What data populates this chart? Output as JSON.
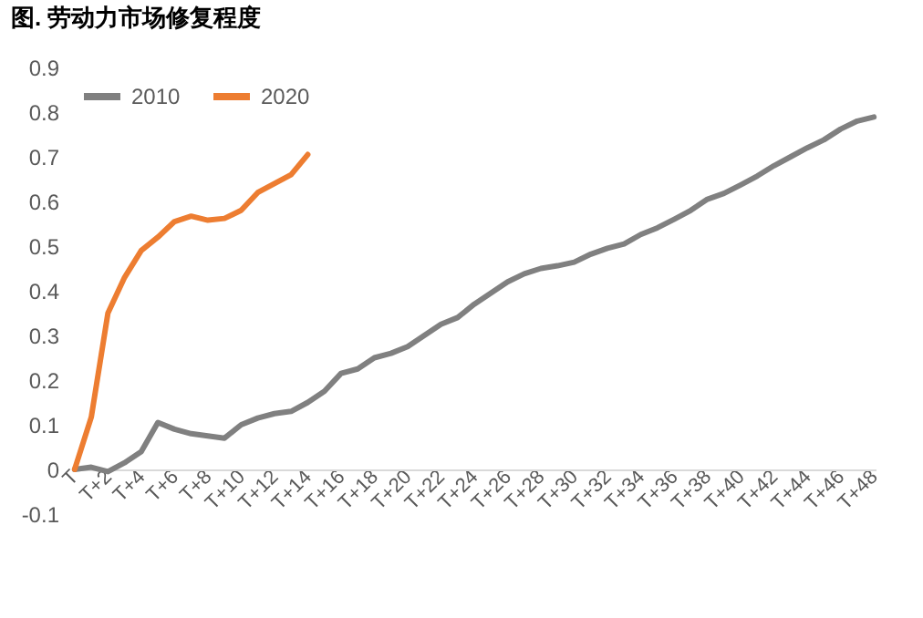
{
  "chart_data": {
    "type": "line",
    "title": "图. 劳动力市场修复程度",
    "categories": [
      "T",
      null,
      "T+2",
      null,
      "T+4",
      null,
      "T+6",
      null,
      "T+8",
      null,
      "T+10",
      null,
      "T+12",
      null,
      "T+14",
      null,
      "T+16",
      null,
      "T+18",
      null,
      "T+20",
      null,
      "T+22",
      null,
      "T+24",
      null,
      "T+26",
      null,
      "T+28",
      null,
      "T+30",
      null,
      "T+32",
      null,
      "T+34",
      null,
      "T+36",
      null,
      "T+38",
      null,
      "T+40",
      null,
      "T+42",
      null,
      "T+44",
      null,
      "T+46",
      null,
      "T+48"
    ],
    "series": [
      {
        "name": "2010",
        "color": "#808080",
        "values": [
          0,
          0.005,
          -0.005,
          0.015,
          0.04,
          0.105,
          0.09,
          0.08,
          0.075,
          0.07,
          0.1,
          0.115,
          0.125,
          0.13,
          0.15,
          0.175,
          0.215,
          0.225,
          0.25,
          0.26,
          0.275,
          0.3,
          0.325,
          0.34,
          0.37,
          0.395,
          0.42,
          0.438,
          0.45,
          0.456,
          0.464,
          0.482,
          0.495,
          0.505,
          0.526,
          0.541,
          0.56,
          0.58,
          0.605,
          0.618,
          0.637,
          0.657,
          0.68,
          0.7,
          0.72,
          0.738,
          0.762,
          0.78,
          0.789
        ]
      },
      {
        "name": "2020",
        "color": "#ed7d31",
        "values": [
          0,
          0.117,
          0.35,
          0.43,
          0.49,
          0.52,
          0.555,
          0.567,
          0.558,
          0.562,
          0.58,
          0.62,
          0.64,
          0.66,
          0.705,
          null,
          null,
          null,
          null,
          null,
          null,
          null,
          null,
          null,
          null,
          null,
          null,
          null,
          null,
          null,
          null,
          null,
          null,
          null,
          null,
          null,
          null,
          null,
          null,
          null,
          null,
          null,
          null,
          null,
          null,
          null,
          null,
          null,
          null
        ]
      }
    ],
    "ylim": [
      -0.1,
      0.9
    ],
    "yticks": [
      -0.1,
      0,
      0.1,
      0.2,
      0.3,
      0.4,
      0.5,
      0.6,
      0.7,
      0.8,
      0.9
    ],
    "legend": "top left",
    "marker": "none",
    "line_style": "solid"
  }
}
